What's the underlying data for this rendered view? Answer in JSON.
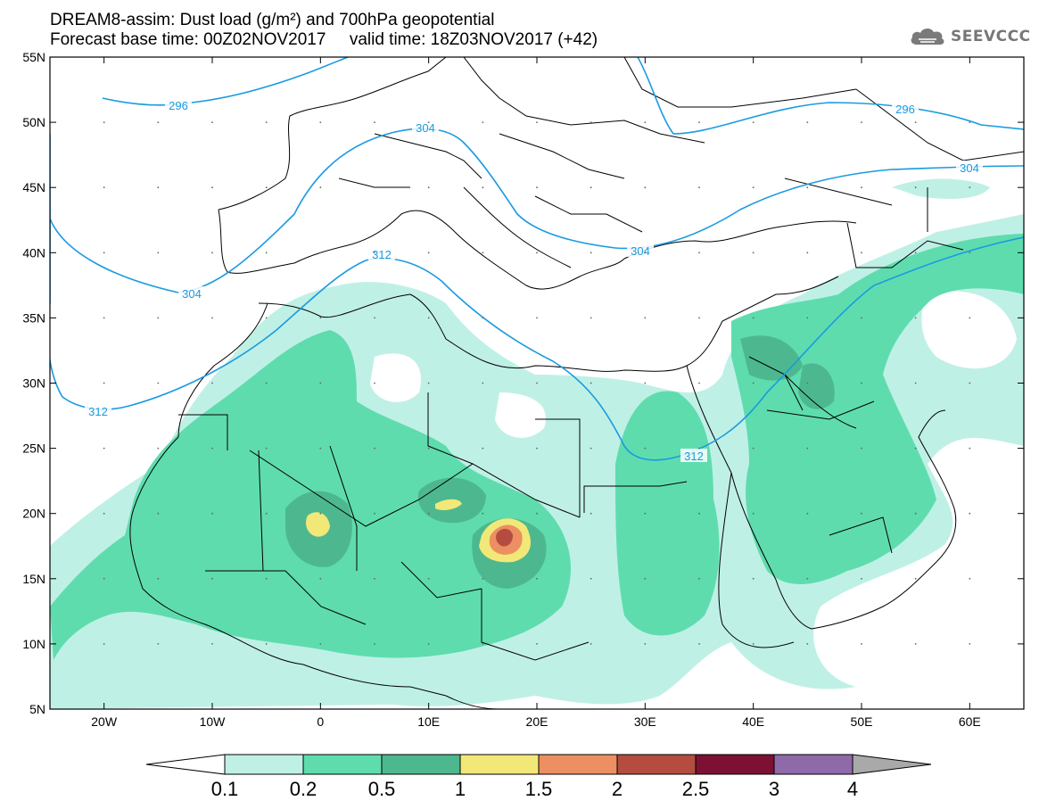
{
  "header": {
    "title_line1": "DREAM8-assim: Dust load (g/m²) and 700hPa geopotential",
    "title_line2": "Forecast base time: 00Z02NOV2017     valid time: 18Z03NOV2017 (+42)",
    "logo_text": "SEEVCCC",
    "logo_icon": "cloud-icon"
  },
  "map": {
    "lon_range": [
      -25,
      65
    ],
    "lat_range": [
      5,
      55
    ],
    "lat_labels": [
      "55N",
      "50N",
      "45N",
      "40N",
      "35N",
      "30N",
      "25N",
      "20N",
      "15N",
      "10N",
      "5N"
    ],
    "lon_labels": [
      "20W",
      "10W",
      "0",
      "10E",
      "20E",
      "30E",
      "40E",
      "50E",
      "60E"
    ],
    "contour_labels": [
      "296",
      "296",
      "304",
      "304",
      "304",
      "304",
      "312",
      "312",
      "312"
    ],
    "colors": {
      "contour": "#1a9be0",
      "coast": "#000000",
      "level_01": "#bff0e6",
      "level_02": "#5fdcae",
      "level_05": "#4db88f",
      "level_1": "#f2e878",
      "level_15": "#ec8f62",
      "level_2": "#b44d40",
      "level_25": "#7d1133",
      "level_3": "#8e6aa8",
      "level_4": "#a9a9a9"
    }
  },
  "colorbar": {
    "labels": [
      "0.1",
      "0.2",
      "0.5",
      "1",
      "1.5",
      "2",
      "2.5",
      "3",
      "4"
    ],
    "colors": [
      "#bff0e6",
      "#5fdcae",
      "#4db88f",
      "#f2e878",
      "#ec8f62",
      "#b44d40",
      "#7d1133",
      "#8e6aa8"
    ],
    "under_color": "#ffffff",
    "over_color": "#a9a9a9"
  }
}
